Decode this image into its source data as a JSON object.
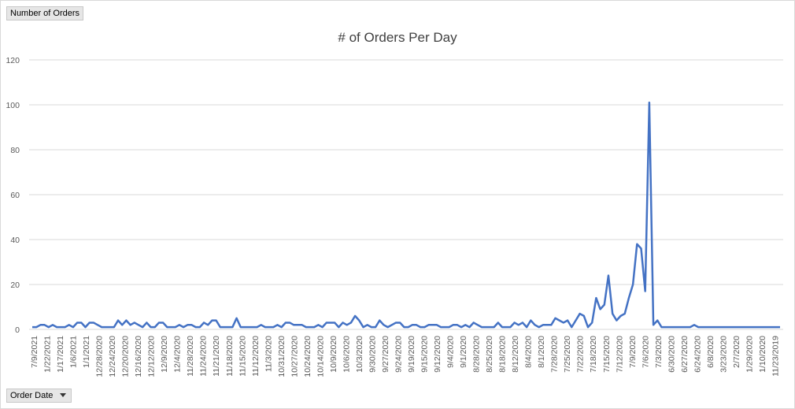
{
  "pivot": {
    "values_field": "Number of Orders",
    "axis_field": "Order Date"
  },
  "colors": {
    "line": "#4472c4",
    "grid": "#d9d9d9",
    "text": "#595959"
  },
  "chart_data": {
    "type": "line",
    "title": "# of Orders Per Day",
    "xlabel": "",
    "ylabel": "",
    "ylim": [
      0,
      120
    ],
    "yticks": [
      0,
      20,
      40,
      60,
      80,
      100,
      120
    ],
    "grid": true,
    "legend": "none",
    "x_tick_labels": [
      "7/9/2021",
      "1/22/2021",
      "1/17/2021",
      "1/6/2021",
      "1/1/2021",
      "12/28/2020",
      "12/24/2020",
      "12/20/2020",
      "12/16/2020",
      "12/12/2020",
      "12/9/2020",
      "12/4/2020",
      "11/28/2020",
      "11/24/2020",
      "11/21/2020",
      "11/18/2020",
      "11/15/2020",
      "11/12/2020",
      "11/3/2020",
      "10/31/2020",
      "10/27/2020",
      "10/24/2020",
      "10/14/2020",
      "10/9/2020",
      "10/6/2020",
      "10/3/2020",
      "9/30/2020",
      "9/27/2020",
      "9/24/2020",
      "9/19/2020",
      "9/15/2020",
      "9/12/2020",
      "9/4/2020",
      "9/1/2020",
      "8/28/2020",
      "8/25/2020",
      "8/18/2020",
      "8/12/2020",
      "8/4/2020",
      "8/1/2020",
      "7/28/2020",
      "7/25/2020",
      "7/22/2020",
      "7/18/2020",
      "7/15/2020",
      "7/12/2020",
      "7/9/2020",
      "7/6/2020",
      "7/3/2020",
      "6/30/2020",
      "6/27/2020",
      "6/24/2020",
      "6/8/2020",
      "3/23/2020",
      "2/7/2020",
      "1/29/2020",
      "1/10/2020",
      "11/23/2019"
    ],
    "points_per_tick": 3,
    "values": [
      1,
      1,
      2,
      2,
      1,
      2,
      1,
      1,
      1,
      2,
      1,
      3,
      3,
      1,
      3,
      3,
      2,
      1,
      1,
      1,
      1,
      4,
      2,
      4,
      2,
      3,
      2,
      1,
      3,
      1,
      1,
      3,
      3,
      1,
      1,
      1,
      2,
      1,
      2,
      2,
      1,
      1,
      3,
      2,
      4,
      4,
      1,
      1,
      1,
      1,
      5,
      1,
      1,
      1,
      1,
      1,
      2,
      1,
      1,
      1,
      2,
      1,
      3,
      3,
      2,
      2,
      2,
      1,
      1,
      1,
      2,
      1,
      3,
      3,
      3,
      1,
      3,
      2,
      3,
      6,
      4,
      1,
      2,
      1,
      1,
      4,
      2,
      1,
      2,
      3,
      3,
      1,
      1,
      2,
      2,
      1,
      1,
      2,
      2,
      2,
      1,
      1,
      1,
      2,
      2,
      1,
      2,
      1,
      3,
      2,
      1,
      1,
      1,
      1,
      3,
      1,
      1,
      1,
      3,
      2,
      3,
      1,
      4,
      2,
      1,
      2,
      2,
      2,
      5,
      4,
      3,
      4,
      1,
      4,
      7,
      6,
      1,
      3,
      14,
      9,
      11,
      24,
      7,
      4,
      6,
      7,
      14,
      20,
      38,
      36,
      17,
      101,
      2,
      4,
      1,
      1,
      1,
      1,
      1,
      1,
      1,
      1,
      2,
      1,
      1,
      1,
      1,
      1,
      1,
      1,
      1,
      1,
      1,
      1,
      1,
      1,
      1,
      1,
      1,
      1,
      1,
      1,
      1,
      1
    ]
  }
}
